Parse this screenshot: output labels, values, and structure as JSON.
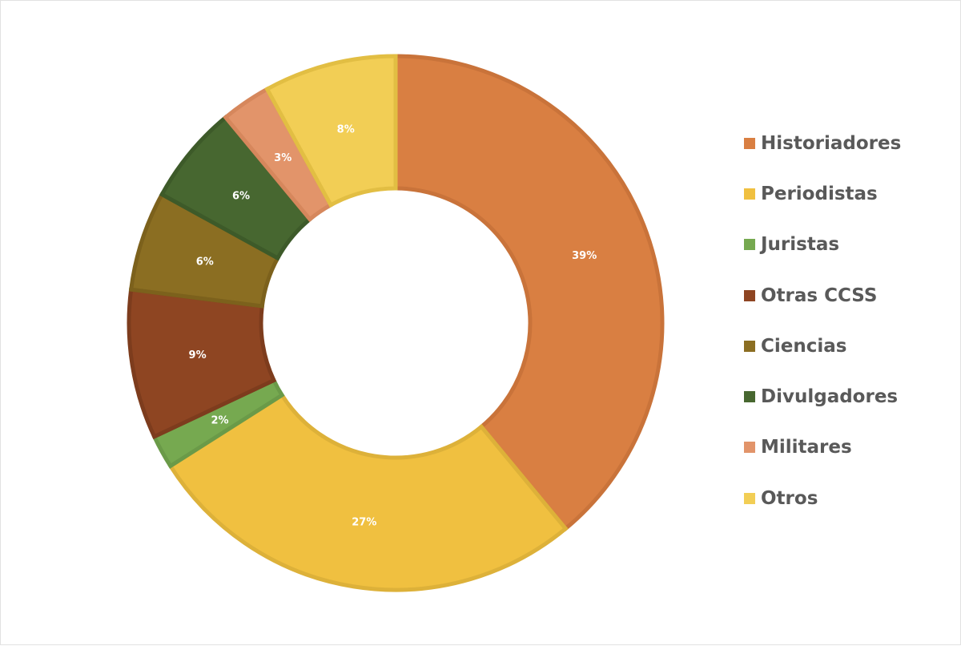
{
  "chart_data": {
    "type": "pie",
    "title": "",
    "legend_position": "right",
    "slices": [
      {
        "name": "Historiadores",
        "value": 39,
        "label": "39%",
        "color": "#D97F42",
        "stroke": "#C9733A"
      },
      {
        "name": "Periodistas",
        "value": 27,
        "label": "27%",
        "color": "#F0C040",
        "stroke": "#DDB139"
      },
      {
        "name": "Juristas",
        "value": 2,
        "label": "2%",
        "color": "#76A950",
        "stroke": "#6A9A48"
      },
      {
        "name": "Otras CCSS",
        "value": 9,
        "label": "9%",
        "color": "#8E4522",
        "stroke": "#7D3C1D"
      },
      {
        "name": "Ciencias",
        "value": 6,
        "label": "6%",
        "color": "#8B6E22",
        "stroke": "#7C611C"
      },
      {
        "name": "Divulgadores",
        "value": 6,
        "label": "6%",
        "color": "#476730",
        "stroke": "#3D5A29"
      },
      {
        "name": "Militares",
        "value": 3,
        "label": "3%",
        "color": "#E2946A",
        "stroke": "#D6875C"
      },
      {
        "name": "Otros",
        "value": 8,
        "label": "8%",
        "color": "#F2CE55",
        "stroke": "#E2BE43"
      }
    ]
  }
}
